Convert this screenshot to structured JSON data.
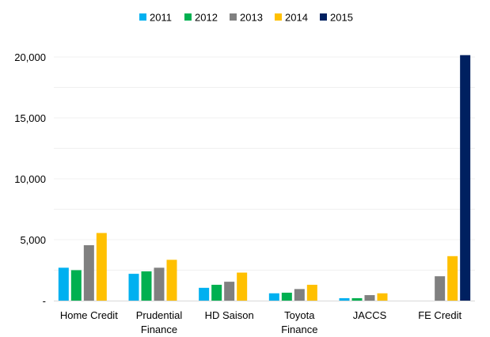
{
  "chart_data": {
    "type": "bar",
    "title": "",
    "xlabel": "",
    "ylabel": "",
    "ylim": [
      0,
      22000
    ],
    "yticks": [
      {
        "value": 0,
        "label": "-"
      },
      {
        "value": 5000,
        "label": "5,000"
      },
      {
        "value": 10000,
        "label": "10,000"
      },
      {
        "value": 15000,
        "label": "15,000"
      },
      {
        "value": 20000,
        "label": "20,000"
      }
    ],
    "grid": true,
    "legend_position": "top-center",
    "categories": [
      [
        "Home Credit"
      ],
      [
        "Prudential",
        "Finance"
      ],
      [
        "HD Saison"
      ],
      [
        "Toyota",
        "Finance"
      ],
      [
        "JACCS"
      ],
      [
        "FE Credit"
      ]
    ],
    "series": [
      {
        "name": "2011",
        "color": "#00b0f0",
        "values": [
          2700,
          2200,
          1050,
          600,
          200,
          null
        ]
      },
      {
        "name": "2012",
        "color": "#00b050",
        "values": [
          2500,
          2400,
          1300,
          650,
          200,
          null
        ]
      },
      {
        "name": "2013",
        "color": "#808080",
        "values": [
          4550,
          2700,
          1550,
          950,
          450,
          2000
        ]
      },
      {
        "name": "2014",
        "color": "#ffc000",
        "values": [
          5550,
          3350,
          2300,
          1300,
          600,
          3650
        ]
      },
      {
        "name": "2015",
        "color": "#002060",
        "values": [
          null,
          null,
          null,
          null,
          null,
          20150
        ]
      }
    ]
  }
}
